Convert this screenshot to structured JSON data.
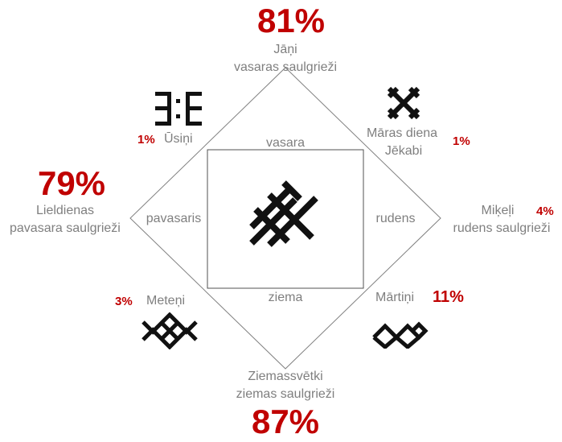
{
  "seasons": {
    "summer": "vasara",
    "autumn": "rudens",
    "winter": "ziema",
    "spring": "pavasaris"
  },
  "festivals": {
    "jani": {
      "name": "Jāņi",
      "sub": "vasaras saulgrieži",
      "percent": "81%"
    },
    "ziemassvetki": {
      "name": "Ziemassvētki",
      "sub": "ziemas saulgrieži",
      "percent": "87%"
    },
    "lieldienas": {
      "name": "Lieldienas",
      "sub": "pavasara saulgrieži",
      "percent": "79%"
    },
    "mikeli": {
      "name": "Miķeļi",
      "sub": "rudens saulgrieži",
      "percent": "4%"
    },
    "usini": {
      "name": "Ūsiņi",
      "percent": "1%"
    },
    "maras_diena": {
      "name": "Māras diena",
      "sub": "Jēkabi",
      "percent": "1%"
    },
    "meteni": {
      "name": "Meteņi",
      "percent": "3%"
    },
    "martini": {
      "name": "Mārtiņi",
      "percent": "11%"
    }
  },
  "colors": {
    "percent": "#c00000",
    "label": "#7f7f7f",
    "line": "#808080",
    "symbol": "#111111"
  },
  "icons": [
    "usins-symbol",
    "mara-cross-symbol",
    "meteni-symbol",
    "martini-symbol",
    "center-sun-symbol"
  ]
}
